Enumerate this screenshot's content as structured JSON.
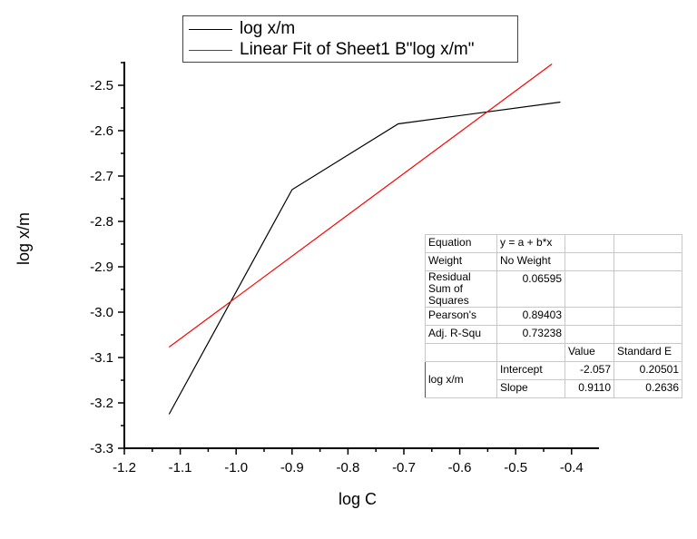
{
  "chart_data": {
    "type": "line",
    "title": "",
    "xlabel": "log C",
    "ylabel": "log x/m",
    "xlim": [
      -1.2,
      -0.35
    ],
    "ylim": [
      -3.3,
      -2.45
    ],
    "x_ticks": [
      "-1.2",
      "-1.1",
      "-1.0",
      "-0.9",
      "-0.8",
      "-0.7",
      "-0.6",
      "-0.5",
      "-0.4"
    ],
    "y_ticks": [
      "-2.5",
      "-2.6",
      "-2.7",
      "-2.8",
      "-2.9",
      "-3.0",
      "-3.1",
      "-3.2",
      "-3.3"
    ],
    "grid": false,
    "legend_position": "top",
    "series": [
      {
        "name": "log x/m",
        "color": "#000000",
        "x": [
          -1.12,
          -0.9,
          -0.71,
          -0.42
        ],
        "y": [
          -3.225,
          -2.73,
          -2.585,
          -2.537
        ]
      },
      {
        "name": "Linear Fit of Sheet1 B\"log x/m\"",
        "color": "#ff0000",
        "x": [
          -1.12,
          -0.435
        ],
        "y": [
          -3.077,
          -2.453
        ]
      }
    ],
    "fit_table": {
      "rows": [
        {
          "label": "Equation",
          "value": "y = a + b*x"
        },
        {
          "label": "Weight",
          "value": "No Weight"
        },
        {
          "label": "Residual Sum of Squares",
          "value": "0.06595"
        },
        {
          "label": "Pearson's",
          "value": "0.89403"
        },
        {
          "label": "Adj. R-Squ",
          "value": "0.73238"
        }
      ],
      "col_headers": [
        "Value",
        "Standard E"
      ],
      "group_label": "log x/m",
      "params": [
        {
          "name": "Intercept",
          "value": "-2.057",
          "stderr": "0.20501"
        },
        {
          "name": "Slope",
          "value": "0.9110",
          "stderr": "0.2636"
        }
      ]
    }
  },
  "legend": {
    "items": [
      {
        "label": "log x/m",
        "color": "#000000"
      },
      {
        "label": "Linear Fit of Sheet1 B\"log x/m\"",
        "color": "#ff0000"
      }
    ]
  }
}
